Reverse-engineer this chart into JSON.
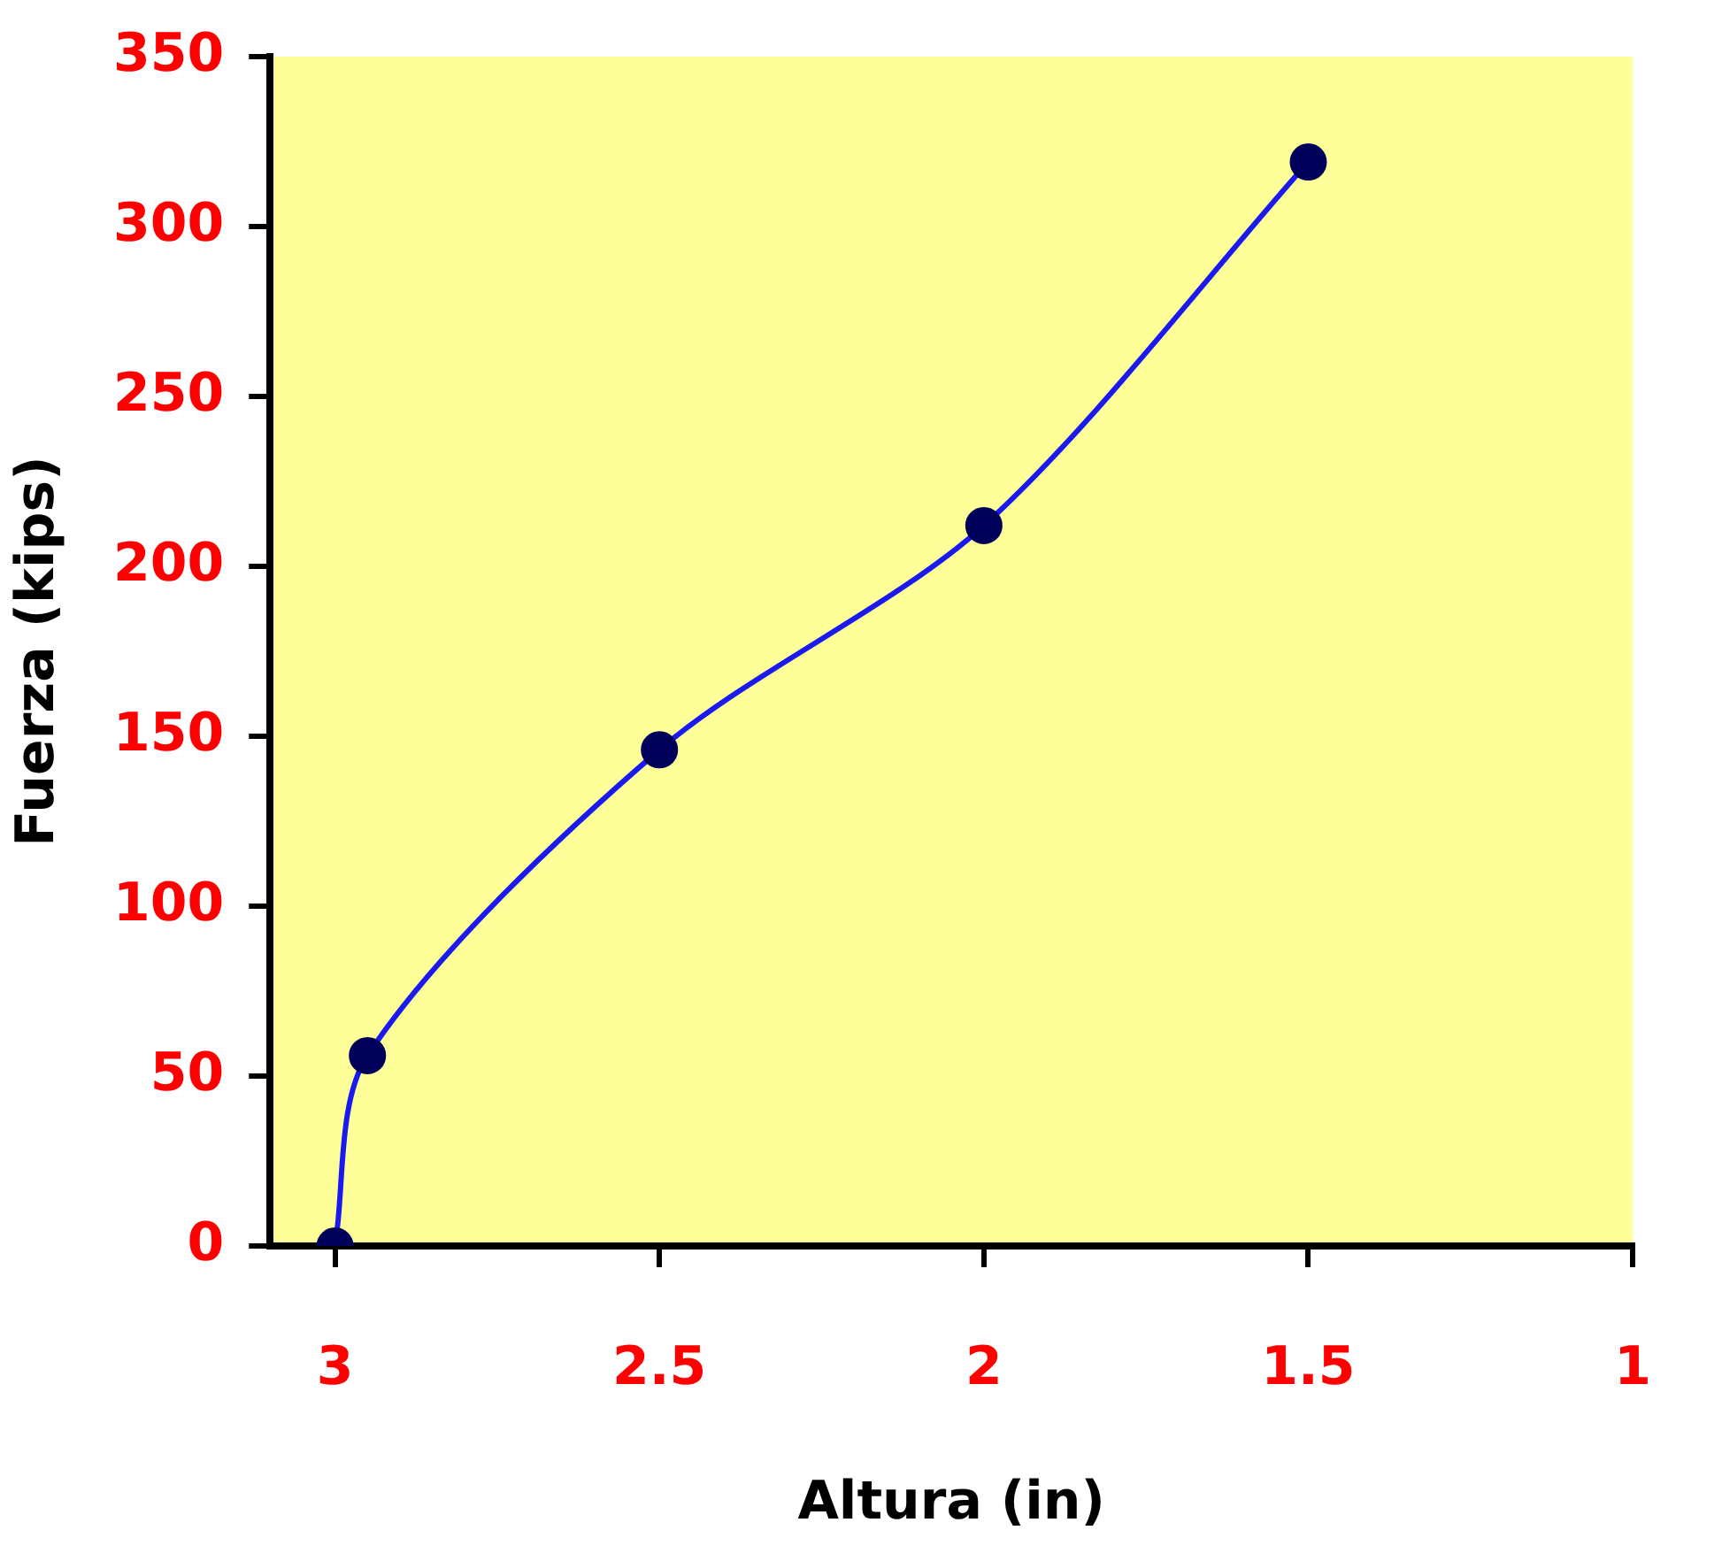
{
  "chart_data": {
    "type": "line",
    "xlabel": "Altura (in)",
    "ylabel": "Fuerza (kips)",
    "x": [
      3.0,
      2.95,
      2.5,
      2.0,
      1.5
    ],
    "series": [
      {
        "color": "#1a1aee",
        "values": [
          0,
          56,
          146,
          212,
          319
        ]
      }
    ],
    "xlim": [
      3.1,
      1
    ],
    "xticks": [
      3,
      2.5,
      2,
      1.5,
      1
    ],
    "ylim": [
      0,
      350
    ],
    "yticks": [
      0,
      50,
      100,
      150,
      200,
      250,
      300,
      350
    ],
    "grid": false,
    "legend": false,
    "marker": "circle",
    "line_style": "solid"
  }
}
